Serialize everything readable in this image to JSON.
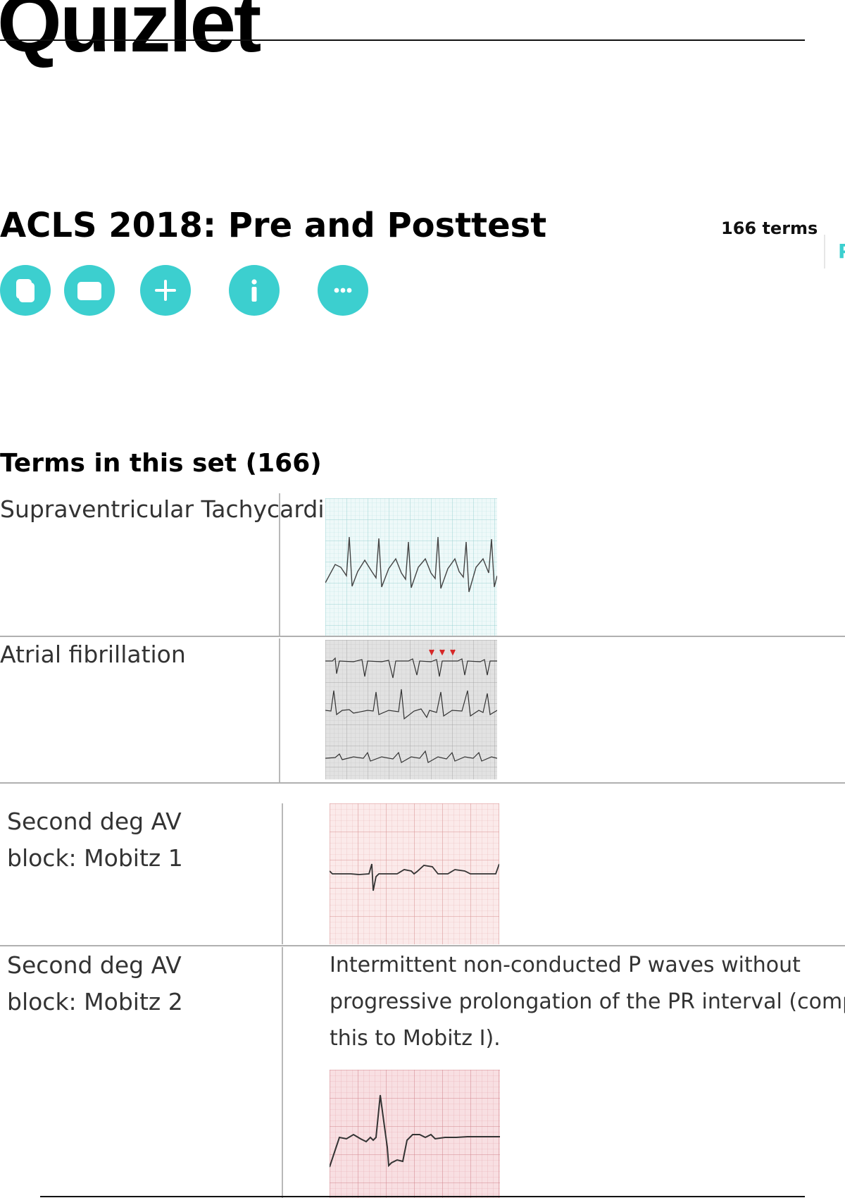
{
  "brand": {
    "logo": "Quizlet"
  },
  "set": {
    "title": "ACLS 2018: Pre and Posttest",
    "term_count_label": "166 terms",
    "side_link_letter": "P",
    "accent_color": "#3ccfcf"
  },
  "actions": [
    {
      "icon": "copy-icon"
    },
    {
      "icon": "folder-icon"
    },
    {
      "icon": "plus-icon"
    },
    {
      "icon": "info-icon"
    },
    {
      "icon": "more-icon"
    }
  ],
  "terms_section": {
    "heading": "Terms in this set (166)",
    "items": [
      {
        "term": "Supraventricular Tachycardia",
        "definition": "",
        "image_icon": "ecg-svt-strip-icon"
      },
      {
        "term": "Atrial fibrillation",
        "definition": "",
        "image_icon": "ecg-afib-strip-icon"
      },
      {
        "term": "Second deg AV\nblock: Mobitz 1",
        "definition": "",
        "image_icon": "ecg-mobitz1-strip-icon"
      },
      {
        "term": "Second deg AV\nblock: Mobitz 2",
        "definition_lines": [
          "Intermittent non-conducted P waves without",
          "progressive prolongation of the PR interval (compa",
          "this to Mobitz I)."
        ],
        "image_icon": "ecg-mobitz2-strip-icon"
      }
    ]
  }
}
